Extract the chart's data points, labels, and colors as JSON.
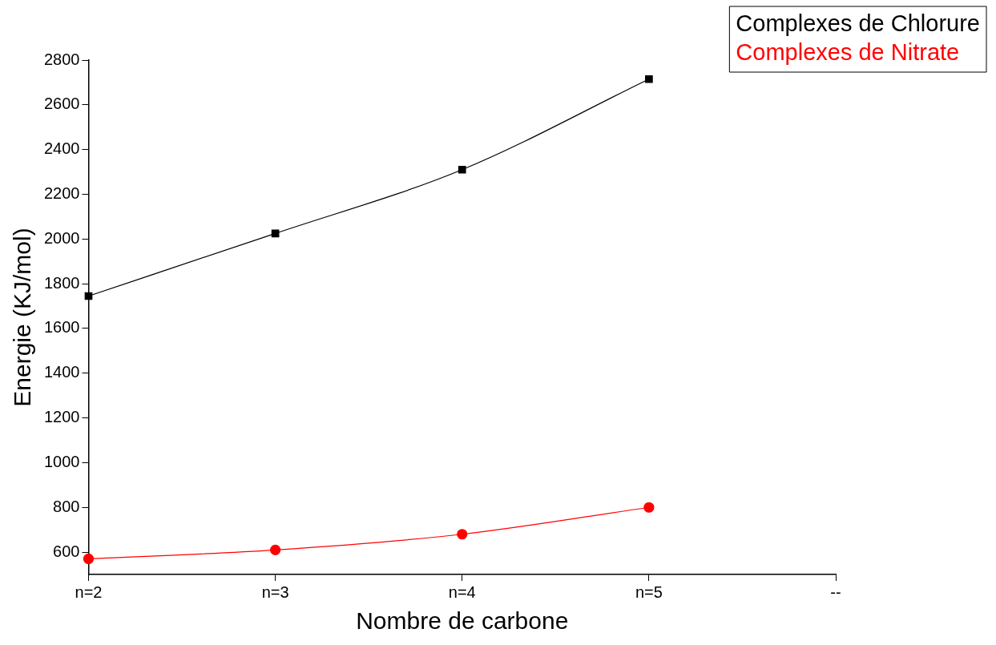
{
  "chart_data": {
    "type": "line",
    "xlabel": "Nombre de carbone",
    "ylabel": "Energie (KJ/mol)",
    "categories": [
      "n=2",
      "n=3",
      "n=4",
      "n=5",
      "--"
    ],
    "series": [
      {
        "name": "Complexes de Chlorure",
        "color": "#000000",
        "marker": "square",
        "values": [
          1745,
          2025,
          2310,
          2715,
          null
        ]
      },
      {
        "name": "Complexes de Nitrate",
        "color": "#ff0000",
        "marker": "circle",
        "values": [
          570,
          610,
          680,
          800,
          null
        ]
      }
    ],
    "ylim": [
      500,
      2800
    ],
    "yticks": [
      600,
      800,
      1000,
      1200,
      1400,
      1600,
      1800,
      2000,
      2200,
      2400,
      2600,
      2800
    ],
    "grid": false,
    "legend": "top right"
  }
}
